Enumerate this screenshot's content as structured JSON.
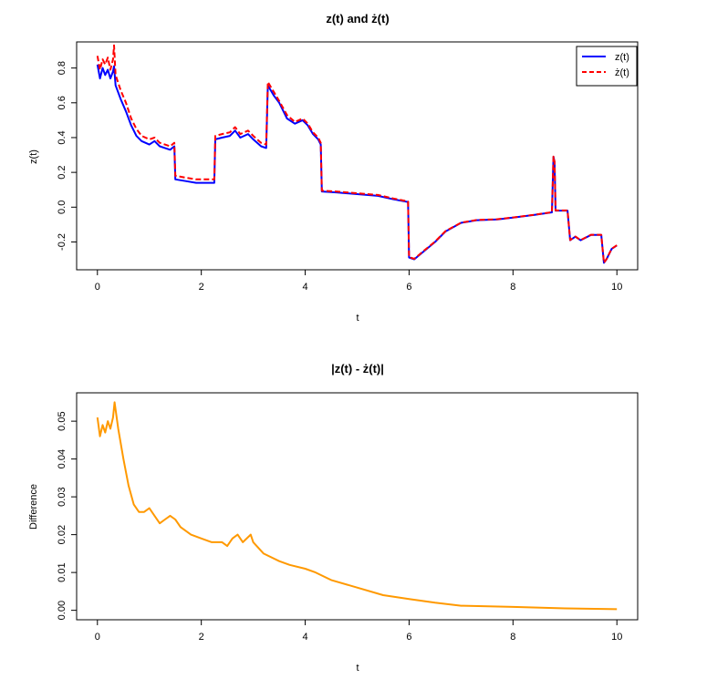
{
  "chart_data": [
    {
      "type": "line",
      "title": "z(t) and ż(t)",
      "xlabel": "t",
      "ylabel": "z(t)",
      "xlim": [
        -0.4,
        10.4
      ],
      "ylim": [
        -0.36,
        0.95
      ],
      "xticks": [
        0,
        2,
        4,
        6,
        8,
        10
      ],
      "yticks": [
        -0.2,
        0.0,
        0.2,
        0.4,
        0.6,
        0.8
      ],
      "ytick_labels": [
        "-0.2",
        "0.0",
        "0.2",
        "0.4",
        "0.6",
        "0.8"
      ],
      "legend": "top-right",
      "grid": false,
      "series": [
        {
          "name": "z(t)",
          "color": "#0000ff",
          "style": "solid",
          "points": [
            [
              0.0,
              0.82
            ],
            [
              0.05,
              0.74
            ],
            [
              0.1,
              0.8
            ],
            [
              0.15,
              0.76
            ],
            [
              0.2,
              0.79
            ],
            [
              0.25,
              0.74
            ],
            [
              0.3,
              0.78
            ],
            [
              0.32,
              0.81
            ],
            [
              0.35,
              0.7
            ],
            [
              0.45,
              0.62
            ],
            [
              0.55,
              0.55
            ],
            [
              0.65,
              0.47
            ],
            [
              0.75,
              0.41
            ],
            [
              0.85,
              0.38
            ],
            [
              1.0,
              0.36
            ],
            [
              1.1,
              0.38
            ],
            [
              1.2,
              0.35
            ],
            [
              1.3,
              0.34
            ],
            [
              1.4,
              0.33
            ],
            [
              1.48,
              0.35
            ],
            [
              1.5,
              0.16
            ],
            [
              1.7,
              0.15
            ],
            [
              1.9,
              0.14
            ],
            [
              2.1,
              0.14
            ],
            [
              2.25,
              0.14
            ],
            [
              2.27,
              0.39
            ],
            [
              2.4,
              0.4
            ],
            [
              2.55,
              0.41
            ],
            [
              2.65,
              0.44
            ],
            [
              2.75,
              0.4
            ],
            [
              2.9,
              0.42
            ],
            [
              3.0,
              0.39
            ],
            [
              3.15,
              0.35
            ],
            [
              3.25,
              0.34
            ],
            [
              3.28,
              0.7
            ],
            [
              3.4,
              0.64
            ],
            [
              3.5,
              0.6
            ],
            [
              3.65,
              0.51
            ],
            [
              3.8,
              0.48
            ],
            [
              3.95,
              0.5
            ],
            [
              4.05,
              0.47
            ],
            [
              4.15,
              0.42
            ],
            [
              4.25,
              0.39
            ],
            [
              4.3,
              0.36
            ],
            [
              4.32,
              0.09
            ],
            [
              4.6,
              0.085
            ],
            [
              5.0,
              0.075
            ],
            [
              5.4,
              0.065
            ],
            [
              5.7,
              0.045
            ],
            [
              5.98,
              0.03
            ],
            [
              6.0,
              -0.29
            ],
            [
              6.1,
              -0.3
            ],
            [
              6.3,
              -0.25
            ],
            [
              6.5,
              -0.2
            ],
            [
              6.7,
              -0.14
            ],
            [
              7.0,
              -0.09
            ],
            [
              7.3,
              -0.075
            ],
            [
              7.7,
              -0.07
            ],
            [
              8.0,
              -0.06
            ],
            [
              8.4,
              -0.045
            ],
            [
              8.75,
              -0.03
            ],
            [
              8.78,
              0.29
            ],
            [
              8.8,
              0.26
            ],
            [
              8.82,
              -0.02
            ],
            [
              9.05,
              -0.02
            ],
            [
              9.1,
              -0.19
            ],
            [
              9.2,
              -0.17
            ],
            [
              9.3,
              -0.19
            ],
            [
              9.5,
              -0.16
            ],
            [
              9.7,
              -0.16
            ],
            [
              9.75,
              -0.32
            ],
            [
              9.8,
              -0.3
            ],
            [
              9.9,
              -0.24
            ],
            [
              10.0,
              -0.22
            ]
          ]
        },
        {
          "name": "ż(t)",
          "color": "#ff0000",
          "style": "dashed",
          "points": [
            [
              0.0,
              0.87
            ],
            [
              0.05,
              0.79
            ],
            [
              0.1,
              0.85
            ],
            [
              0.15,
              0.82
            ],
            [
              0.2,
              0.86
            ],
            [
              0.25,
              0.79
            ],
            [
              0.3,
              0.85
            ],
            [
              0.32,
              0.93
            ],
            [
              0.35,
              0.76
            ],
            [
              0.45,
              0.67
            ],
            [
              0.55,
              0.6
            ],
            [
              0.65,
              0.51
            ],
            [
              0.75,
              0.45
            ],
            [
              0.85,
              0.41
            ],
            [
              1.0,
              0.39
            ],
            [
              1.1,
              0.4
            ],
            [
              1.2,
              0.37
            ],
            [
              1.3,
              0.36
            ],
            [
              1.4,
              0.35
            ],
            [
              1.48,
              0.37
            ],
            [
              1.5,
              0.18
            ],
            [
              1.7,
              0.17
            ],
            [
              1.9,
              0.16
            ],
            [
              2.1,
              0.16
            ],
            [
              2.25,
              0.16
            ],
            [
              2.27,
              0.41
            ],
            [
              2.4,
              0.42
            ],
            [
              2.55,
              0.43
            ],
            [
              2.65,
              0.46
            ],
            [
              2.75,
              0.42
            ],
            [
              2.9,
              0.44
            ],
            [
              3.0,
              0.41
            ],
            [
              3.15,
              0.37
            ],
            [
              3.25,
              0.36
            ],
            [
              3.28,
              0.72
            ],
            [
              3.4,
              0.66
            ],
            [
              3.5,
              0.61
            ],
            [
              3.65,
              0.53
            ],
            [
              3.8,
              0.49
            ],
            [
              3.95,
              0.51
            ],
            [
              4.05,
              0.48
            ],
            [
              4.15,
              0.43
            ],
            [
              4.25,
              0.4
            ],
            [
              4.3,
              0.37
            ],
            [
              4.32,
              0.095
            ],
            [
              4.6,
              0.09
            ],
            [
              5.0,
              0.08
            ],
            [
              5.4,
              0.07
            ],
            [
              5.7,
              0.05
            ],
            [
              5.98,
              0.033
            ],
            [
              6.0,
              -0.287
            ],
            [
              6.1,
              -0.297
            ],
            [
              6.3,
              -0.247
            ],
            [
              6.5,
              -0.198
            ],
            [
              6.7,
              -0.138
            ],
            [
              7.0,
              -0.089
            ],
            [
              7.3,
              -0.074
            ],
            [
              7.7,
              -0.069
            ],
            [
              8.0,
              -0.059
            ],
            [
              8.4,
              -0.044
            ],
            [
              8.75,
              -0.029
            ],
            [
              8.78,
              0.291
            ],
            [
              8.8,
              0.261
            ],
            [
              8.82,
              -0.019
            ],
            [
              9.05,
              -0.019
            ],
            [
              9.1,
              -0.189
            ],
            [
              9.2,
              -0.169
            ],
            [
              9.3,
              -0.189
            ],
            [
              9.5,
              -0.159
            ],
            [
              9.7,
              -0.159
            ],
            [
              9.75,
              -0.319
            ],
            [
              9.8,
              -0.299
            ],
            [
              9.9,
              -0.239
            ],
            [
              10.0,
              -0.219
            ]
          ]
        }
      ]
    },
    {
      "type": "line",
      "title": "|z(t) - ż(t)|",
      "xlabel": "t",
      "ylabel": "Difference",
      "xlim": [
        -0.4,
        10.4
      ],
      "ylim": [
        -0.0025,
        0.0575
      ],
      "xticks": [
        0,
        2,
        4,
        6,
        8,
        10
      ],
      "yticks": [
        0.0,
        0.01,
        0.02,
        0.03,
        0.04,
        0.05
      ],
      "ytick_labels": [
        "0.00",
        "0.01",
        "0.02",
        "0.03",
        "0.04",
        "0.05"
      ],
      "grid": false,
      "series": [
        {
          "color": "#ff9900",
          "style": "solid",
          "points": [
            [
              0.0,
              0.051
            ],
            [
              0.05,
              0.046
            ],
            [
              0.1,
              0.049
            ],
            [
              0.15,
              0.047
            ],
            [
              0.2,
              0.05
            ],
            [
              0.25,
              0.048
            ],
            [
              0.3,
              0.051
            ],
            [
              0.33,
              0.055
            ],
            [
              0.4,
              0.048
            ],
            [
              0.5,
              0.04
            ],
            [
              0.6,
              0.033
            ],
            [
              0.7,
              0.028
            ],
            [
              0.8,
              0.026
            ],
            [
              0.9,
              0.026
            ],
            [
              1.0,
              0.027
            ],
            [
              1.1,
              0.025
            ],
            [
              1.2,
              0.023
            ],
            [
              1.3,
              0.024
            ],
            [
              1.4,
              0.025
            ],
            [
              1.5,
              0.024
            ],
            [
              1.6,
              0.022
            ],
            [
              1.8,
              0.02
            ],
            [
              2.0,
              0.019
            ],
            [
              2.2,
              0.018
            ],
            [
              2.4,
              0.018
            ],
            [
              2.5,
              0.017
            ],
            [
              2.6,
              0.019
            ],
            [
              2.7,
              0.02
            ],
            [
              2.8,
              0.018
            ],
            [
              2.95,
              0.02
            ],
            [
              3.0,
              0.018
            ],
            [
              3.2,
              0.015
            ],
            [
              3.5,
              0.013
            ],
            [
              3.7,
              0.012
            ],
            [
              4.0,
              0.011
            ],
            [
              4.2,
              0.01
            ],
            [
              4.5,
              0.008
            ],
            [
              5.0,
              0.006
            ],
            [
              5.5,
              0.004
            ],
            [
              6.0,
              0.003
            ],
            [
              6.5,
              0.002
            ],
            [
              7.0,
              0.0012
            ],
            [
              8.0,
              0.0009
            ],
            [
              9.0,
              0.0005
            ],
            [
              10.0,
              0.0003
            ]
          ]
        }
      ]
    }
  ]
}
